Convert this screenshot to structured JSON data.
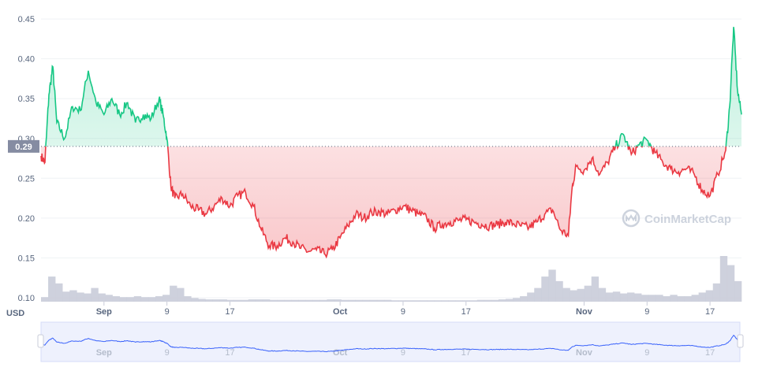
{
  "chart_data": {
    "type": "area",
    "y_axis": {
      "currency": "USD",
      "ticks": [
        "0.45",
        "0.40",
        "0.35",
        "0.30",
        "0.25",
        "0.20",
        "0.15",
        "0.10"
      ],
      "tick_values": [
        0.45,
        0.4,
        0.35,
        0.3,
        0.25,
        0.2,
        0.15,
        0.1
      ],
      "ylim": [
        0.095,
        0.46
      ]
    },
    "x_axis": {
      "ticks": [
        {
          "label": "Sep",
          "date": "2021-09-01",
          "bold": true
        },
        {
          "label": "9",
          "date": "2021-09-09",
          "bold": false
        },
        {
          "label": "17",
          "date": "2021-09-17",
          "bold": false
        },
        {
          "label": "Oct",
          "date": "2021-10-01",
          "bold": true
        },
        {
          "label": "9",
          "date": "2021-10-09",
          "bold": false
        },
        {
          "label": "17",
          "date": "2021-10-17",
          "bold": false
        },
        {
          "label": "Nov",
          "date": "2021-11-01",
          "bold": true
        },
        {
          "label": "9",
          "date": "2021-11-09",
          "bold": false
        },
        {
          "label": "17",
          "date": "2021-11-17",
          "bold": false
        }
      ],
      "xlim": [
        "2021-08-24",
        "2021-11-21"
      ]
    },
    "reference_price": {
      "value": 0.29,
      "label": "0.29"
    },
    "watermark": "CoinMarketCap",
    "colors": {
      "above": "#16c784",
      "below": "#ea3943",
      "volume": "#c9ccd9",
      "navigator_line": "#3861fb",
      "navigator_bg": "#eef1fd",
      "grid": "#eff2f5",
      "text": "#58667e"
    },
    "grid": true,
    "series": [
      {
        "values": [
          {
            "x": "2021-08-24",
            "y": 0.278
          },
          {
            "x": "2021-08-24.5",
            "y": 0.27
          },
          {
            "x": "2021-08-25",
            "y": 0.355
          },
          {
            "x": "2021-08-25.5",
            "y": 0.39
          },
          {
            "x": "2021-08-26",
            "y": 0.32
          },
          {
            "x": "2021-08-27",
            "y": 0.3
          },
          {
            "x": "2021-08-28",
            "y": 0.34
          },
          {
            "x": "2021-08-29",
            "y": 0.335
          },
          {
            "x": "2021-08-30",
            "y": 0.385
          },
          {
            "x": "2021-08-31",
            "y": 0.345
          },
          {
            "x": "2021-09-01",
            "y": 0.33
          },
          {
            "x": "2021-09-02",
            "y": 0.35
          },
          {
            "x": "2021-09-03",
            "y": 0.33
          },
          {
            "x": "2021-09-04",
            "y": 0.345
          },
          {
            "x": "2021-09-05",
            "y": 0.32
          },
          {
            "x": "2021-09-06",
            "y": 0.33
          },
          {
            "x": "2021-09-07",
            "y": 0.325
          },
          {
            "x": "2021-09-08",
            "y": 0.35
          },
          {
            "x": "2021-09-08.5",
            "y": 0.33
          },
          {
            "x": "2021-09-09",
            "y": 0.3
          },
          {
            "x": "2021-09-09.5",
            "y": 0.24
          },
          {
            "x": "2021-09-10",
            "y": 0.225
          },
          {
            "x": "2021-09-11",
            "y": 0.23
          },
          {
            "x": "2021-09-12",
            "y": 0.215
          },
          {
            "x": "2021-09-13",
            "y": 0.21
          },
          {
            "x": "2021-09-14",
            "y": 0.205
          },
          {
            "x": "2021-09-15",
            "y": 0.215
          },
          {
            "x": "2021-09-16",
            "y": 0.225
          },
          {
            "x": "2021-09-17",
            "y": 0.215
          },
          {
            "x": "2021-09-18",
            "y": 0.228
          },
          {
            "x": "2021-09-19",
            "y": 0.232
          },
          {
            "x": "2021-09-20",
            "y": 0.215
          },
          {
            "x": "2021-09-21",
            "y": 0.185
          },
          {
            "x": "2021-09-22",
            "y": 0.165
          },
          {
            "x": "2021-09-23",
            "y": 0.165
          },
          {
            "x": "2021-09-24",
            "y": 0.175
          },
          {
            "x": "2021-09-25",
            "y": 0.17
          },
          {
            "x": "2021-09-26",
            "y": 0.162
          },
          {
            "x": "2021-09-27",
            "y": 0.158
          },
          {
            "x": "2021-09-28",
            "y": 0.16
          },
          {
            "x": "2021-09-29",
            "y": 0.155
          },
          {
            "x": "2021-09-30",
            "y": 0.16
          },
          {
            "x": "2021-10-01",
            "y": 0.175
          },
          {
            "x": "2021-10-02",
            "y": 0.19
          },
          {
            "x": "2021-10-03",
            "y": 0.205
          },
          {
            "x": "2021-10-04",
            "y": 0.2
          },
          {
            "x": "2021-10-05",
            "y": 0.207
          },
          {
            "x": "2021-10-06",
            "y": 0.208
          },
          {
            "x": "2021-10-07",
            "y": 0.205
          },
          {
            "x": "2021-10-08",
            "y": 0.21
          },
          {
            "x": "2021-10-09",
            "y": 0.215
          },
          {
            "x": "2021-10-10",
            "y": 0.21
          },
          {
            "x": "2021-10-11",
            "y": 0.205
          },
          {
            "x": "2021-10-12",
            "y": 0.2
          },
          {
            "x": "2021-10-13",
            "y": 0.187
          },
          {
            "x": "2021-10-14",
            "y": 0.192
          },
          {
            "x": "2021-10-15",
            "y": 0.195
          },
          {
            "x": "2021-10-16",
            "y": 0.197
          },
          {
            "x": "2021-10-17",
            "y": 0.198
          },
          {
            "x": "2021-10-18",
            "y": 0.195
          },
          {
            "x": "2021-10-19",
            "y": 0.192
          },
          {
            "x": "2021-10-20",
            "y": 0.19
          },
          {
            "x": "2021-10-21",
            "y": 0.192
          },
          {
            "x": "2021-10-22",
            "y": 0.195
          },
          {
            "x": "2021-10-23",
            "y": 0.193
          },
          {
            "x": "2021-10-24",
            "y": 0.19
          },
          {
            "x": "2021-10-25",
            "y": 0.188
          },
          {
            "x": "2021-10-26",
            "y": 0.195
          },
          {
            "x": "2021-10-27",
            "y": 0.205
          },
          {
            "x": "2021-10-28",
            "y": 0.21
          },
          {
            "x": "2021-10-29",
            "y": 0.185
          },
          {
            "x": "2021-10-30",
            "y": 0.178
          },
          {
            "x": "2021-10-30.5",
            "y": 0.24
          },
          {
            "x": "2021-10-31",
            "y": 0.265
          },
          {
            "x": "2021-11-01",
            "y": 0.26
          },
          {
            "x": "2021-11-02",
            "y": 0.275
          },
          {
            "x": "2021-11-03",
            "y": 0.255
          },
          {
            "x": "2021-11-04",
            "y": 0.27
          },
          {
            "x": "2021-11-05",
            "y": 0.29
          },
          {
            "x": "2021-11-06",
            "y": 0.305
          },
          {
            "x": "2021-11-07",
            "y": 0.28
          },
          {
            "x": "2021-11-08",
            "y": 0.292
          },
          {
            "x": "2021-11-09",
            "y": 0.298
          },
          {
            "x": "2021-11-10",
            "y": 0.282
          },
          {
            "x": "2021-11-11",
            "y": 0.27
          },
          {
            "x": "2021-11-12",
            "y": 0.262
          },
          {
            "x": "2021-11-13",
            "y": 0.258
          },
          {
            "x": "2021-11-14",
            "y": 0.262
          },
          {
            "x": "2021-11-15",
            "y": 0.255
          },
          {
            "x": "2021-11-16",
            "y": 0.235
          },
          {
            "x": "2021-11-17",
            "y": 0.228
          },
          {
            "x": "2021-11-18",
            "y": 0.255
          },
          {
            "x": "2021-11-19",
            "y": 0.285
          },
          {
            "x": "2021-11-19.5",
            "y": 0.34
          },
          {
            "x": "2021-11-20",
            "y": 0.44
          },
          {
            "x": "2021-11-20.5",
            "y": 0.36
          },
          {
            "x": "2021-11-21",
            "y": 0.33
          }
        ]
      }
    ],
    "volume": {
      "note": "relative volume, 0-1",
      "values": [
        0.1,
        0.55,
        0.4,
        0.22,
        0.25,
        0.2,
        0.18,
        0.3,
        0.18,
        0.15,
        0.12,
        0.1,
        0.1,
        0.12,
        0.1,
        0.1,
        0.12,
        0.15,
        0.35,
        0.3,
        0.12,
        0.08,
        0.06,
        0.05,
        0.05,
        0.05,
        0.04,
        0.04,
        0.04,
        0.05,
        0.05,
        0.05,
        0.04,
        0.04,
        0.04,
        0.04,
        0.04,
        0.04,
        0.04,
        0.04,
        0.05,
        0.05,
        0.04,
        0.04,
        0.04,
        0.04,
        0.04,
        0.04,
        0.04,
        0.03,
        0.03,
        0.03,
        0.03,
        0.03,
        0.03,
        0.03,
        0.03,
        0.03,
        0.03,
        0.03,
        0.03,
        0.04,
        0.04,
        0.04,
        0.05,
        0.06,
        0.08,
        0.12,
        0.2,
        0.3,
        0.55,
        0.7,
        0.45,
        0.3,
        0.25,
        0.28,
        0.35,
        0.55,
        0.3,
        0.2,
        0.22,
        0.18,
        0.2,
        0.18,
        0.15,
        0.15,
        0.15,
        0.12,
        0.15,
        0.12,
        0.12,
        0.15,
        0.2,
        0.25,
        0.4,
        1.0,
        0.8,
        0.45
      ]
    },
    "navigator": {
      "labels": [
        "Sep",
        "9",
        "17",
        "Oct",
        "9",
        "17",
        "Nov",
        "9",
        "17"
      ]
    }
  }
}
